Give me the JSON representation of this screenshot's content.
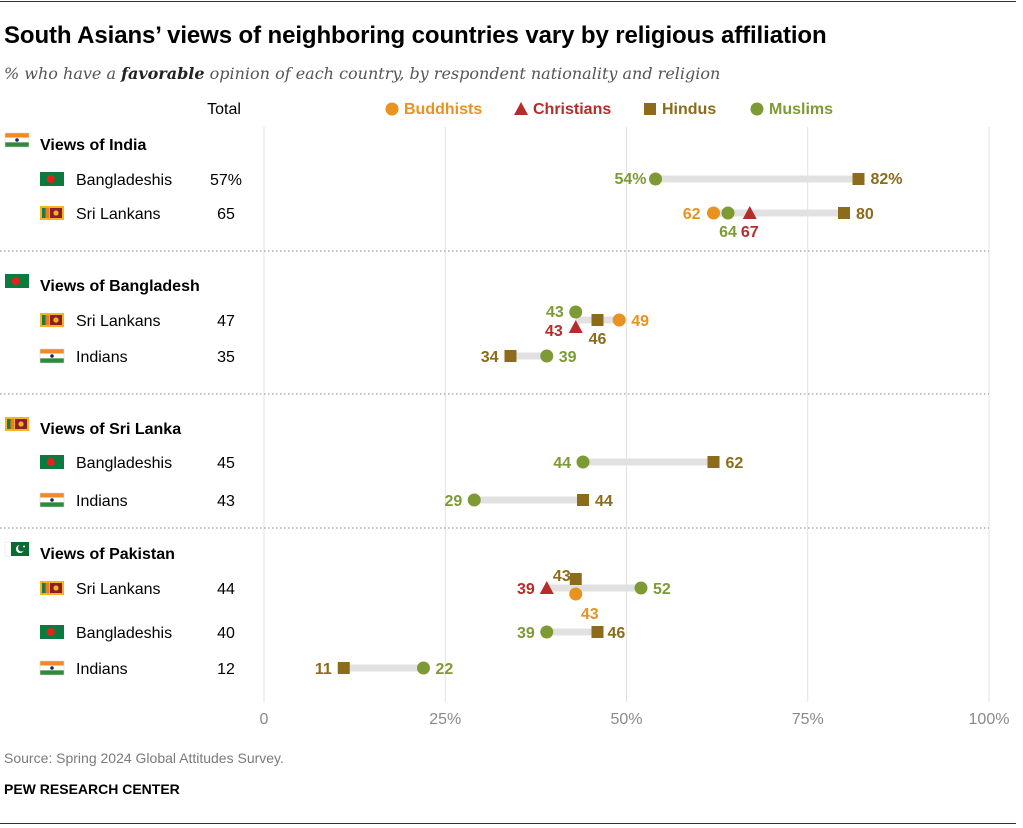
{
  "title": "South Asians’ views of neighboring countries vary by religious affiliation",
  "subtitle_pre": "% who have a ",
  "subtitle_em": "favorable",
  "subtitle_post": " opinion of each country, by respondent nationality and religion",
  "total_header": "Total",
  "legend": [
    {
      "key": "buddhists",
      "label": "Buddhists",
      "shape": "circle",
      "color": "#e8921f"
    },
    {
      "key": "christians",
      "label": "Christians",
      "shape": "triangle",
      "color": "#b52d2a"
    },
    {
      "key": "hindus",
      "label": "Hindus",
      "shape": "square",
      "color": "#8c6b1a"
    },
    {
      "key": "muslims",
      "label": "Muslims",
      "shape": "circle",
      "color": "#7d9a35"
    }
  ],
  "source": "Source: Spring 2024 Global Attitudes Survey.",
  "org": "PEW RESEARCH CENTER",
  "chart_data": {
    "type": "dot-plot",
    "x_axis": {
      "min": 0,
      "max": 100,
      "ticks": [
        0,
        25,
        50,
        75,
        100
      ],
      "tick_labels": [
        "0",
        "25%",
        "50%",
        "75%",
        "100%"
      ]
    },
    "sections": [
      {
        "heading": "Views of India",
        "flag": "india",
        "rows": [
          {
            "label": "Bangladeshis",
            "flag": "bangladesh",
            "total": "57%",
            "points": [
              {
                "series": "muslims",
                "value": 54,
                "text": "54%"
              },
              {
                "series": "hindus",
                "value": 82,
                "text": "82%"
              }
            ]
          },
          {
            "label": "Sri Lankans",
            "flag": "srilanka",
            "total": "65",
            "points": [
              {
                "series": "buddhists",
                "value": 62,
                "text": "62"
              },
              {
                "series": "muslims",
                "value": 64,
                "text": "64"
              },
              {
                "series": "christians",
                "value": 67,
                "text": "67"
              },
              {
                "series": "hindus",
                "value": 80,
                "text": "80"
              }
            ]
          }
        ]
      },
      {
        "heading": "Views of Bangladesh",
        "flag": "bangladesh",
        "rows": [
          {
            "label": "Sri Lankans",
            "flag": "srilanka",
            "total": "47",
            "points": [
              {
                "series": "christians",
                "value": 43,
                "text": "43"
              },
              {
                "series": "muslims",
                "value": 43,
                "text": "43"
              },
              {
                "series": "hindus",
                "value": 46,
                "text": "46"
              },
              {
                "series": "buddhists",
                "value": 49,
                "text": "49"
              }
            ]
          },
          {
            "label": "Indians",
            "flag": "india",
            "total": "35",
            "points": [
              {
                "series": "hindus",
                "value": 34,
                "text": "34"
              },
              {
                "series": "muslims",
                "value": 39,
                "text": "39"
              }
            ]
          }
        ]
      },
      {
        "heading": "Views of Sri Lanka",
        "flag": "srilanka",
        "rows": [
          {
            "label": "Bangladeshis",
            "flag": "bangladesh",
            "total": "45",
            "points": [
              {
                "series": "muslims",
                "value": 44,
                "text": "44"
              },
              {
                "series": "hindus",
                "value": 62,
                "text": "62"
              }
            ]
          },
          {
            "label": "Indians",
            "flag": "india",
            "total": "43",
            "points": [
              {
                "series": "muslims",
                "value": 29,
                "text": "29"
              },
              {
                "series": "hindus",
                "value": 44,
                "text": "44"
              }
            ]
          }
        ]
      },
      {
        "heading": "Views of Pakistan",
        "flag": "pakistan",
        "rows": [
          {
            "label": "Sri Lankans",
            "flag": "srilanka",
            "total": "44",
            "points": [
              {
                "series": "christians",
                "value": 39,
                "text": "39"
              },
              {
                "series": "hindus",
                "value": 43,
                "text": "43"
              },
              {
                "series": "buddhists",
                "value": 43,
                "text": "43"
              },
              {
                "series": "muslims",
                "value": 52,
                "text": "52"
              }
            ]
          },
          {
            "label": "Bangladeshis",
            "flag": "bangladesh",
            "total": "40",
            "points": [
              {
                "series": "muslims",
                "value": 39,
                "text": "39"
              },
              {
                "series": "hindus",
                "value": 46,
                "text": "46"
              }
            ]
          },
          {
            "label": "Indians",
            "flag": "india",
            "total": "12",
            "points": [
              {
                "series": "hindus",
                "value": 11,
                "text": "11"
              },
              {
                "series": "muslims",
                "value": 22,
                "text": "22"
              }
            ]
          }
        ]
      }
    ]
  }
}
